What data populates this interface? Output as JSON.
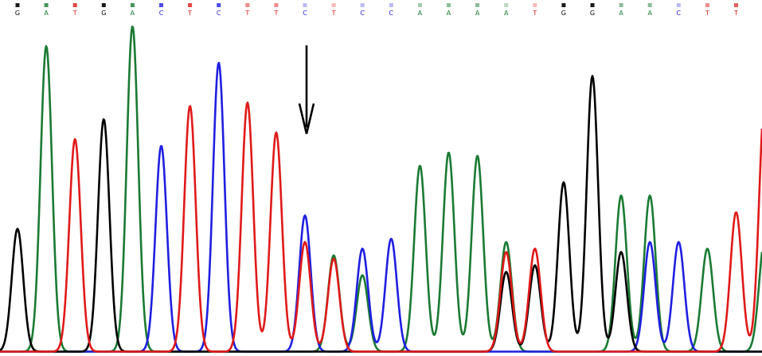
{
  "chart_data": {
    "type": "line",
    "title": "",
    "xlabel": "",
    "ylabel": "",
    "base_calls": [
      "G",
      "A",
      "T",
      "G",
      "A",
      "C",
      "T",
      "C",
      "T",
      "T",
      "C",
      "T",
      "C",
      "C",
      "A",
      "A",
      "A",
      "A",
      "T",
      "G",
      "G",
      "A",
      "A",
      "C",
      "T",
      "T"
    ],
    "quality_levels": [
      0.9,
      0.8,
      0.8,
      0.9,
      0.8,
      0.8,
      0.8,
      0.8,
      0.5,
      0.5,
      0.3,
      0.3,
      0.3,
      0.3,
      0.4,
      0.5,
      0.5,
      0.3,
      0.3,
      0.9,
      0.9,
      0.5,
      0.5,
      0.3,
      0.5,
      0.7
    ],
    "colors": {
      "A": "#1a7a33",
      "C": "#1f1fe0",
      "G": "#000000",
      "T": "#e01919"
    },
    "y_range": [
      0,
      1
    ],
    "annotation": {
      "type": "arrow",
      "pointing_to_peak_index": 10
    },
    "series": [
      {
        "base": "A",
        "peaks": [
          {
            "x": 1,
            "y": 0.92
          },
          {
            "x": 4,
            "y": 0.98
          },
          {
            "x": 11,
            "y": 0.29
          },
          {
            "x": 12,
            "y": 0.23
          },
          {
            "x": 14,
            "y": 0.56
          },
          {
            "x": 15,
            "y": 0.6
          },
          {
            "x": 16,
            "y": 0.59
          },
          {
            "x": 17,
            "y": 0.33
          },
          {
            "x": 21,
            "y": 0.47
          },
          {
            "x": 22,
            "y": 0.47
          },
          {
            "x": 24,
            "y": 0.31
          },
          {
            "x": 26,
            "y": 0.34
          }
        ]
      },
      {
        "base": "C",
        "peaks": [
          {
            "x": 5,
            "y": 0.62
          },
          {
            "x": 7,
            "y": 0.87
          },
          {
            "x": 10,
            "y": 0.41
          },
          {
            "x": 12,
            "y": 0.31
          },
          {
            "x": 13,
            "y": 0.34
          },
          {
            "x": 22,
            "y": 0.33
          },
          {
            "x": 23,
            "y": 0.33
          }
        ]
      },
      {
        "base": "G",
        "peaks": [
          {
            "x": 0,
            "y": 0.37
          },
          {
            "x": 3,
            "y": 0.7
          },
          {
            "x": 17,
            "y": 0.24
          },
          {
            "x": 18,
            "y": 0.26
          },
          {
            "x": 19,
            "y": 0.51
          },
          {
            "x": 20,
            "y": 0.83
          },
          {
            "x": 21,
            "y": 0.3
          }
        ]
      },
      {
        "base": "T",
        "peaks": [
          {
            "x": 2,
            "y": 0.64
          },
          {
            "x": 6,
            "y": 0.74
          },
          {
            "x": 8,
            "y": 0.75
          },
          {
            "x": 9,
            "y": 0.66
          },
          {
            "x": 10,
            "y": 0.33
          },
          {
            "x": 11,
            "y": 0.28
          },
          {
            "x": 17,
            "y": 0.3
          },
          {
            "x": 18,
            "y": 0.31
          },
          {
            "x": 25,
            "y": 0.42
          },
          {
            "x": 26,
            "y": 0.76
          },
          {
            "x": 27,
            "y": 0.33
          }
        ]
      }
    ]
  }
}
